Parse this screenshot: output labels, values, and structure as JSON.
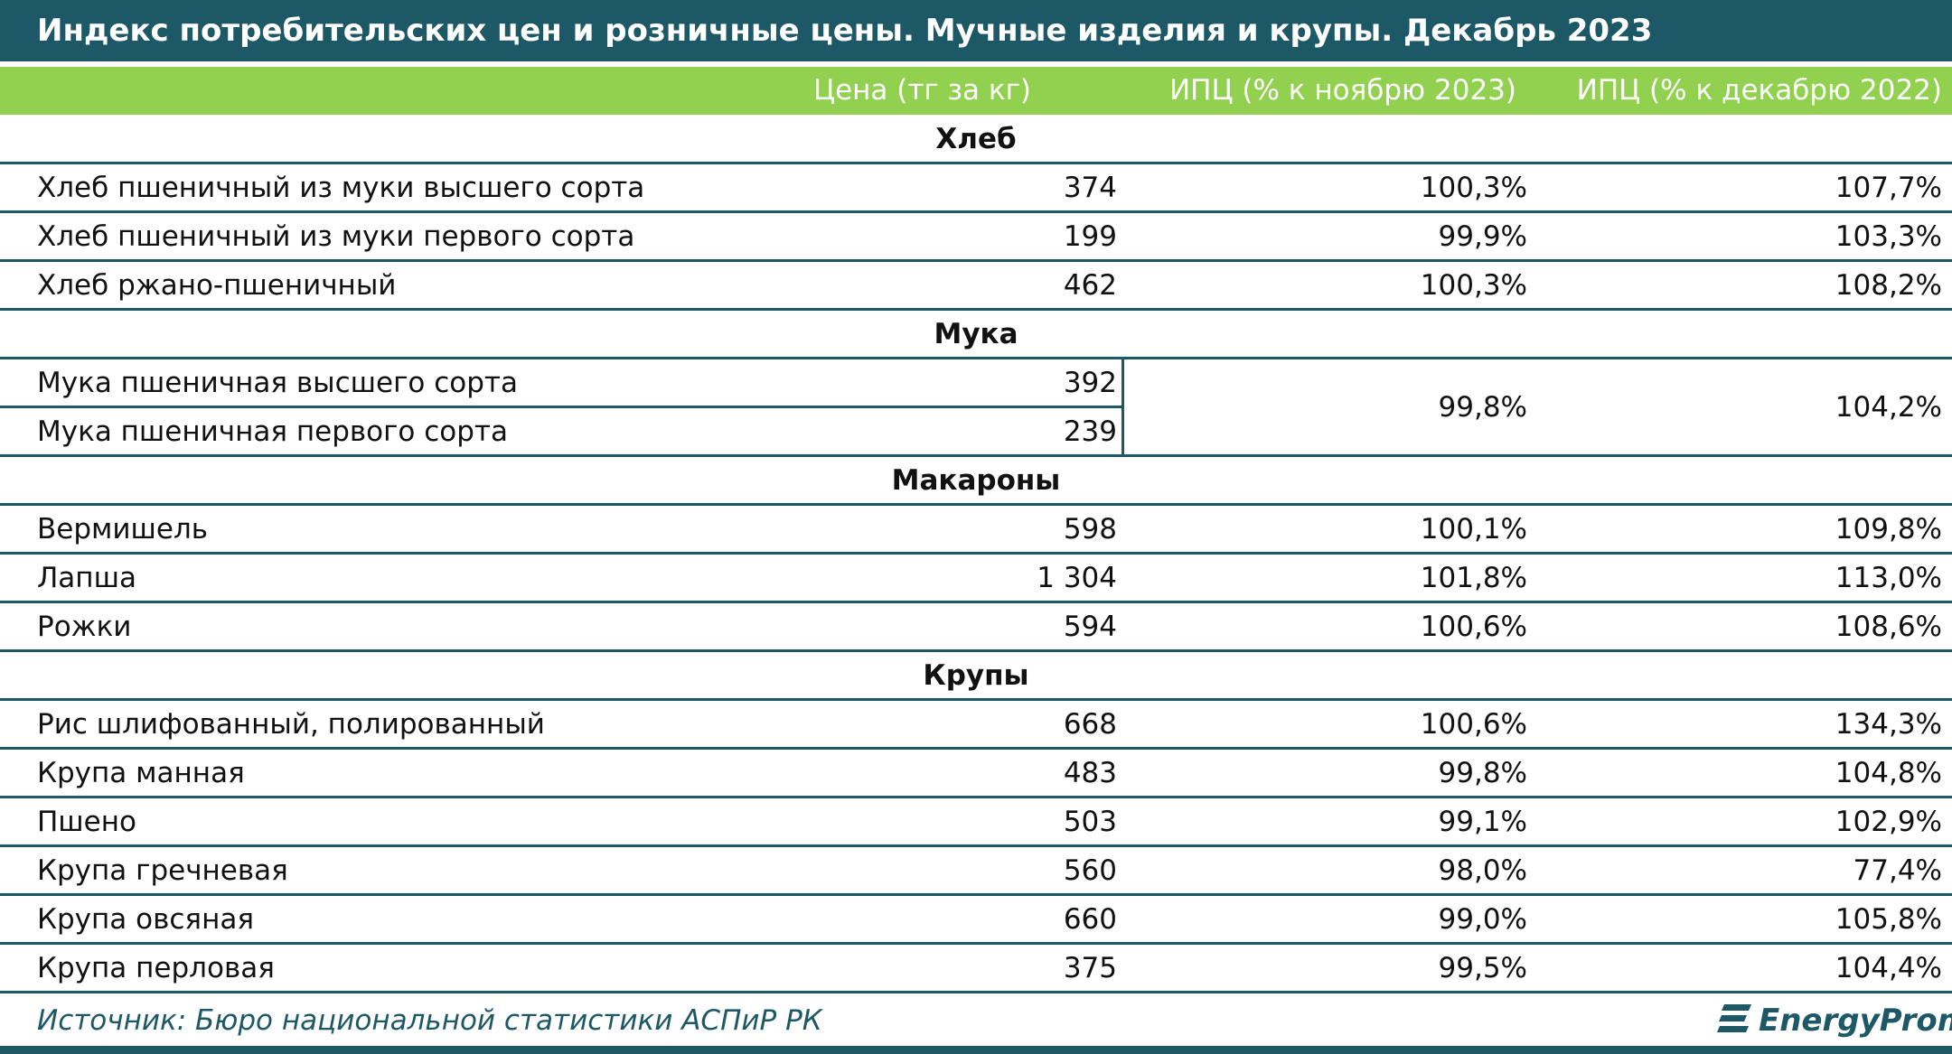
{
  "title": "Индекс потребительских цен и розничные цены. Мучные изделия и крупы. Декабрь 2023",
  "columns": [
    "Цена (тг за кг)",
    "ИПЦ (% к ноябрю 2023)",
    "ИПЦ (% к декабрю 2022)"
  ],
  "sections": [
    {
      "name": "Хлеб",
      "rows": [
        {
          "name": "Хлеб пшеничный из муки высшего сорта",
          "price": "374",
          "cpi_month": "100,3%",
          "cpi_year": "107,7%"
        },
        {
          "name": "Хлеб пшеничный из муки первого сорта",
          "price": "199",
          "cpi_month": "99,9%",
          "cpi_year": "103,3%"
        },
        {
          "name": "Хлеб ржано-пшеничный",
          "price": "462",
          "cpi_month": "100,3%",
          "cpi_year": "108,2%"
        }
      ]
    },
    {
      "name": "Мука",
      "cpi_month": "99,8%",
      "cpi_year": "104,2%",
      "rows": [
        {
          "name": "Мука пшеничная высшего сорта",
          "price": "392"
        },
        {
          "name": "Мука пшеничная первого сорта",
          "price": "239"
        }
      ]
    },
    {
      "name": "Макароны",
      "rows": [
        {
          "name": "Вермишель",
          "price": "598",
          "cpi_month": "100,1%",
          "cpi_year": "109,8%"
        },
        {
          "name": "Лапша",
          "price": "1 304",
          "cpi_month": "101,8%",
          "cpi_year": "113,0%"
        },
        {
          "name": "Рожки",
          "price": "594",
          "cpi_month": "100,6%",
          "cpi_year": "108,6%"
        }
      ]
    },
    {
      "name": "Крупы",
      "rows": [
        {
          "name": "Рис шлифованный, полированный",
          "price": "668",
          "cpi_month": "100,6%",
          "cpi_year": "134,3%"
        },
        {
          "name": "Крупа манная",
          "price": "483",
          "cpi_month": "99,8%",
          "cpi_year": "104,8%"
        },
        {
          "name": "Пшено",
          "price": "503",
          "cpi_month": "99,1%",
          "cpi_year": "102,9%"
        },
        {
          "name": "Крупа гречневая",
          "price": "560",
          "cpi_month": "98,0%",
          "cpi_year": "77,4%"
        },
        {
          "name": "Крупа овсяная",
          "price": "660",
          "cpi_month": "99,0%",
          "cpi_year": "105,8%"
        },
        {
          "name": "Крупа перловая",
          "price": "375",
          "cpi_month": "99,5%",
          "cpi_year": "104,4%"
        }
      ]
    }
  ],
  "source": "Источник: Бюро национальной статистики АСПиР РК",
  "logo": "EnergyProm"
}
